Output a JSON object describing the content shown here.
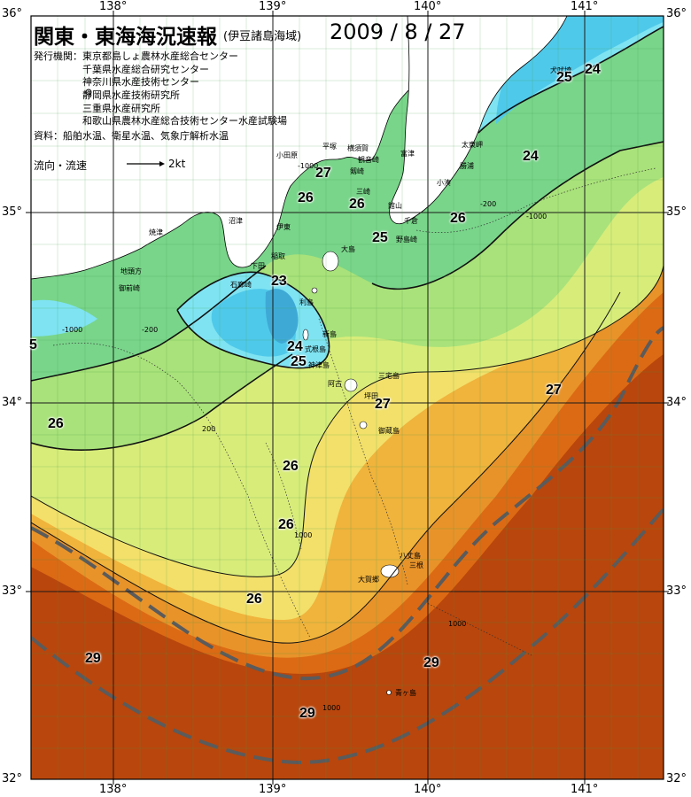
{
  "map": {
    "title": "関東・東海海況速報",
    "subtitle": "(伊豆諸島海域)",
    "date": "2009 / 8 / 27",
    "publisher_label": "発行機関：",
    "publishers": [
      "東京都島しょ農林水産総合センター",
      "千葉県水産総合研究センター",
      "神奈川県水産技術センター",
      "静岡県水産技術研究所",
      "三重県水産研究所",
      "和歌山県農林水産総合技術センター水産試験場"
    ],
    "sources": "資料：船舶水温、衛星水温、気象庁解析水温",
    "flow_label": "流向・流速",
    "flow_scale": "2kt",
    "colors": {
      "sea_23": "#3fa9d6",
      "sea_24": "#4fc9ea",
      "sea_25": "#7fe3f2",
      "sea_26": "#79d58a",
      "sea_26b": "#a9e27a",
      "sea_27": "#d8ec7a",
      "sea_27b": "#f2e06a",
      "sea_28": "#f0b33c",
      "sea_28b": "#e8932a",
      "sea_29": "#dc6a14",
      "sea_29b": "#b9460c",
      "land": "#ffffff",
      "grid": "#1a1a1a",
      "kuroshio_axis": "#5b5b5b"
    }
  },
  "axes": {
    "longitude": [
      "138°",
      "139°",
      "140°",
      "141°"
    ],
    "latitude": [
      "36°",
      "35°",
      "34°",
      "33°",
      "32°"
    ]
  },
  "places": [
    "犬吠埼",
    "太東岬",
    "勝浦",
    "小湊",
    "館山",
    "千倉",
    "野島崎",
    "富津",
    "横須賀",
    "観音崎",
    "剱崎",
    "三崎",
    "平塚",
    "小田原",
    "沼津",
    "焼津",
    "伊東",
    "稲取",
    "下田",
    "石廊崎",
    "地頭方",
    "御前崎",
    "大島",
    "利島",
    "新島",
    "式根島",
    "神津島",
    "三宅島",
    "坪田",
    "阿古",
    "御蔵島",
    "八丈島",
    "三根",
    "大賀郷",
    "青ヶ島"
  ],
  "isotherms": [
    "24",
    "25",
    "24",
    "27",
    "26",
    "26",
    "25",
    "26",
    "23",
    "24",
    "25",
    "27",
    "27",
    "26",
    "26",
    "26",
    "26",
    "29",
    "29",
    "29",
    "5"
  ],
  "depth_labels": [
    "-1000",
    "-200",
    "1000",
    "200"
  ]
}
